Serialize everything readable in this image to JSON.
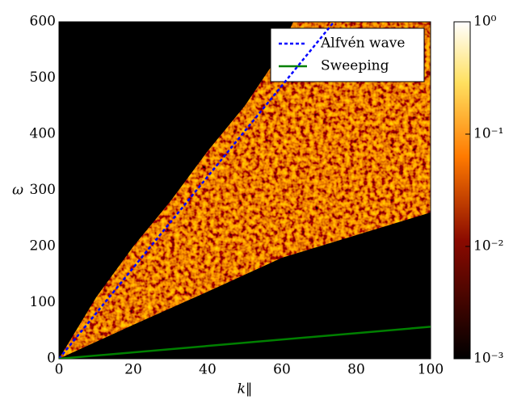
{
  "chart_data": {
    "type": "heatmap",
    "xlabel": "k‖",
    "ylabel": "ω",
    "xlim": [
      0,
      100
    ],
    "xticks": [
      0,
      20,
      40,
      60,
      80,
      100
    ],
    "ylim": [
      0,
      600
    ],
    "yticks": [
      0,
      100,
      200,
      300,
      400,
      500,
      600
    ],
    "colorbar": {
      "scale": "log",
      "lim": [
        0.001,
        1
      ],
      "ticks": [
        {
          "value": 1,
          "label": "10⁰"
        },
        {
          "value": 0.1,
          "label": "10⁻¹"
        },
        {
          "value": 0.01,
          "label": "10⁻²"
        },
        {
          "value": 0.001,
          "label": "10⁻³"
        }
      ]
    },
    "legend": "upper right",
    "series": [
      {
        "name": "Alfvén wave",
        "color": "#0000ff",
        "style": "dotted",
        "x": [
          0,
          74
        ],
        "values": [
          0,
          600
        ]
      },
      {
        "name": "Sweeping",
        "color": "#008000",
        "style": "solid",
        "x": [
          0,
          100
        ],
        "values": [
          0,
          57
        ]
      }
    ]
  }
}
